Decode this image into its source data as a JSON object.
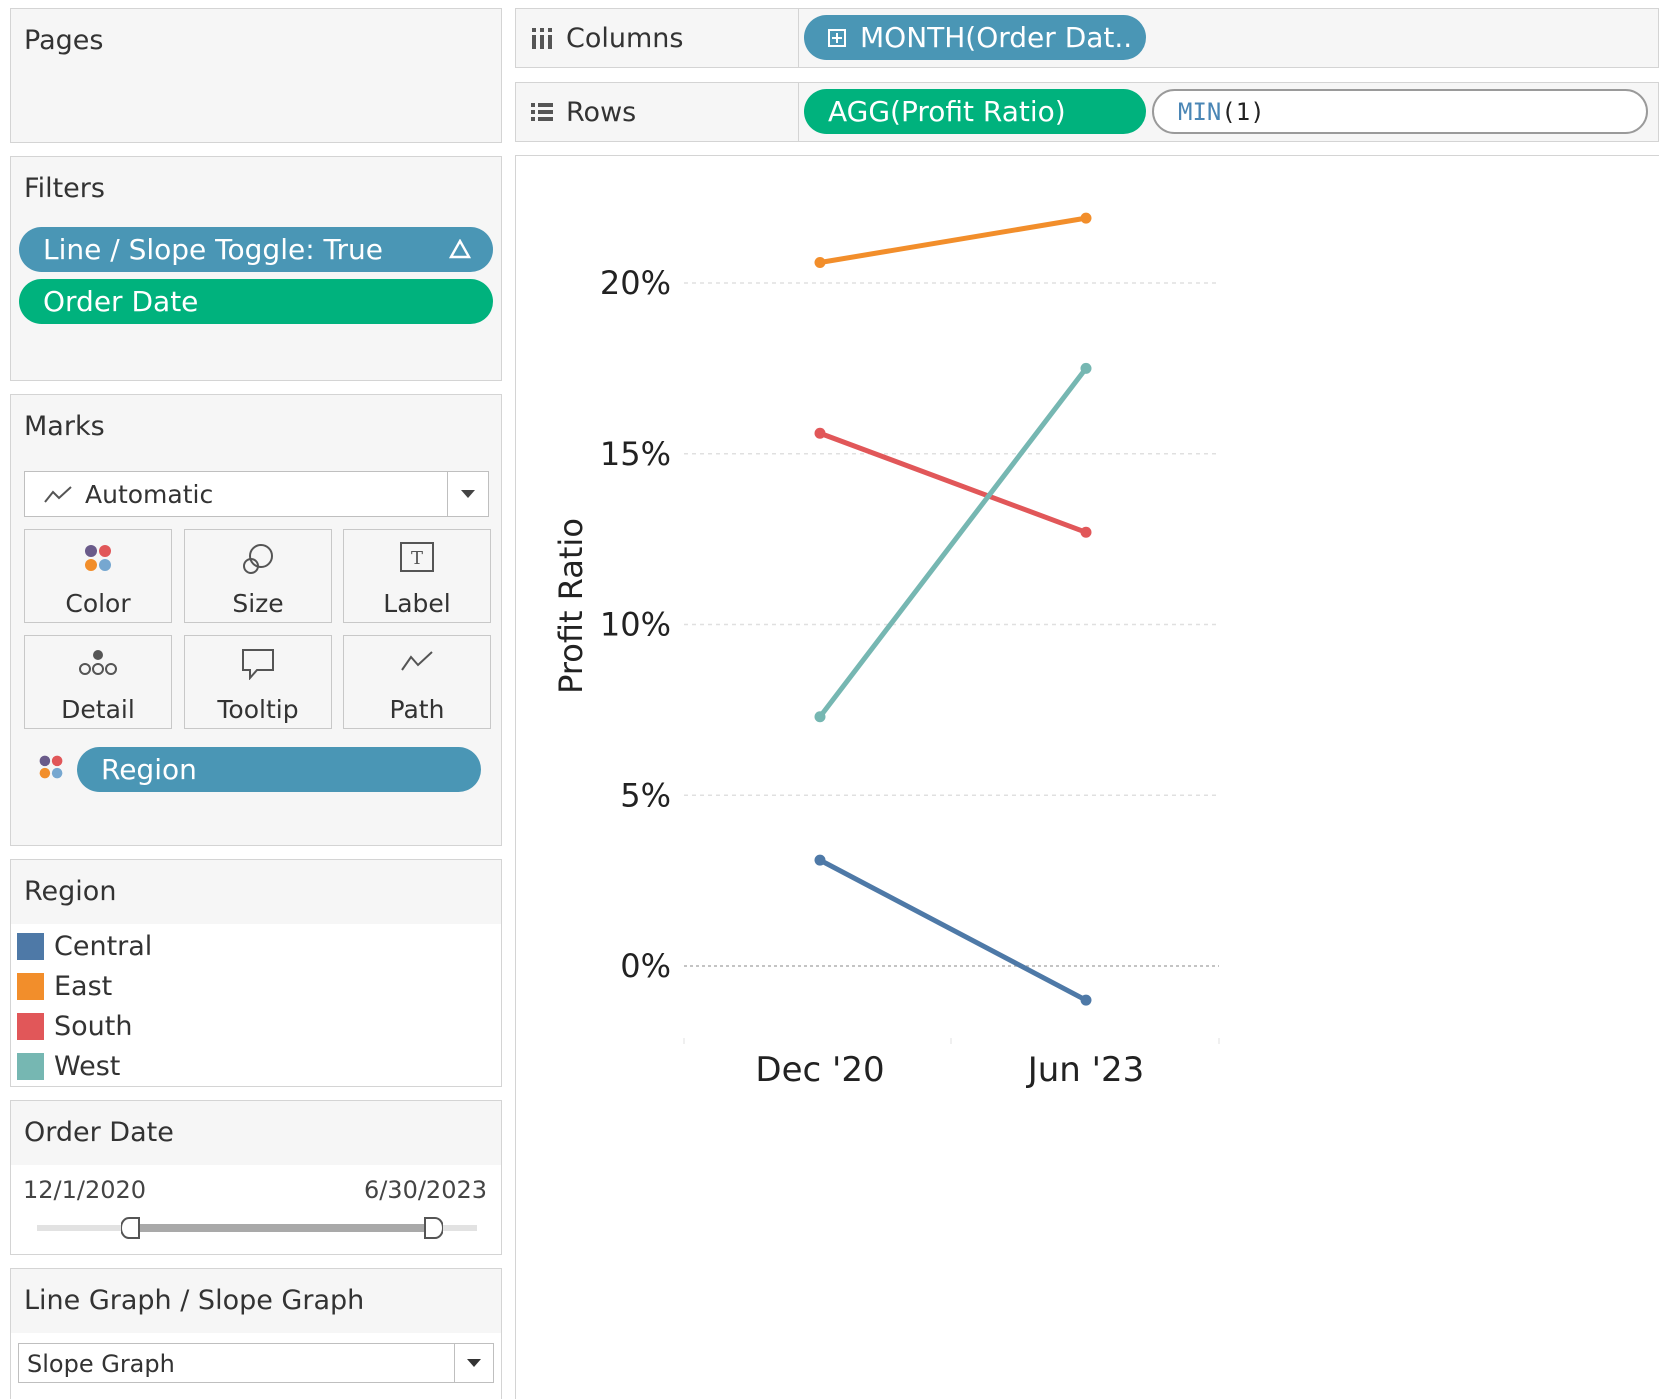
{
  "pages": {
    "title": "Pages"
  },
  "filters": {
    "title": "Filters",
    "items": [
      {
        "label": "Line / Slope Toggle: True",
        "icon": "delta-icon"
      },
      {
        "label": "Order Date"
      }
    ]
  },
  "marks": {
    "title": "Marks",
    "type": "Automatic",
    "buttons": [
      "Color",
      "Size",
      "Label",
      "Detail",
      "Tooltip",
      "Path"
    ],
    "field": "Region"
  },
  "region_legend": {
    "title": "Region",
    "items": [
      {
        "name": "Central",
        "color": "#4e79a7"
      },
      {
        "name": "East",
        "color": "#f28e2b"
      },
      {
        "name": "South",
        "color": "#e15759"
      },
      {
        "name": "West",
        "color": "#76b7b2"
      }
    ]
  },
  "order_date": {
    "title": "Order Date",
    "start": "12/1/2020",
    "end": "6/30/2023"
  },
  "graph_param": {
    "title": "Line Graph / Slope Graph",
    "value": "Slope Graph"
  },
  "shelves": {
    "columns": {
      "label": "Columns",
      "pill": "MONTH(Order Dat.."
    },
    "rows": {
      "label": "Rows",
      "pill1": "AGG(Profit Ratio)",
      "pill2_fn": "MIN",
      "pill2_arg": "(1)"
    }
  },
  "chart_data": {
    "type": "line",
    "categories": [
      "Dec '20",
      "Jun '23"
    ],
    "ylabel": "Profit Ratio",
    "ylim": [
      -0.015,
      0.225
    ],
    "yticks": [
      0,
      0.05,
      0.1,
      0.15,
      0.2
    ],
    "ytick_labels": [
      "0%",
      "5%",
      "10%",
      "15%",
      "20%"
    ],
    "series": [
      {
        "name": "Central",
        "color": "#4e79a7",
        "values": [
          0.031,
          -0.01
        ]
      },
      {
        "name": "East",
        "color": "#f28e2b",
        "values": [
          0.206,
          0.219
        ]
      },
      {
        "name": "South",
        "color": "#e15759",
        "values": [
          0.156,
          0.127
        ]
      },
      {
        "name": "West",
        "color": "#76b7b2",
        "values": [
          0.073,
          0.175
        ]
      }
    ]
  }
}
